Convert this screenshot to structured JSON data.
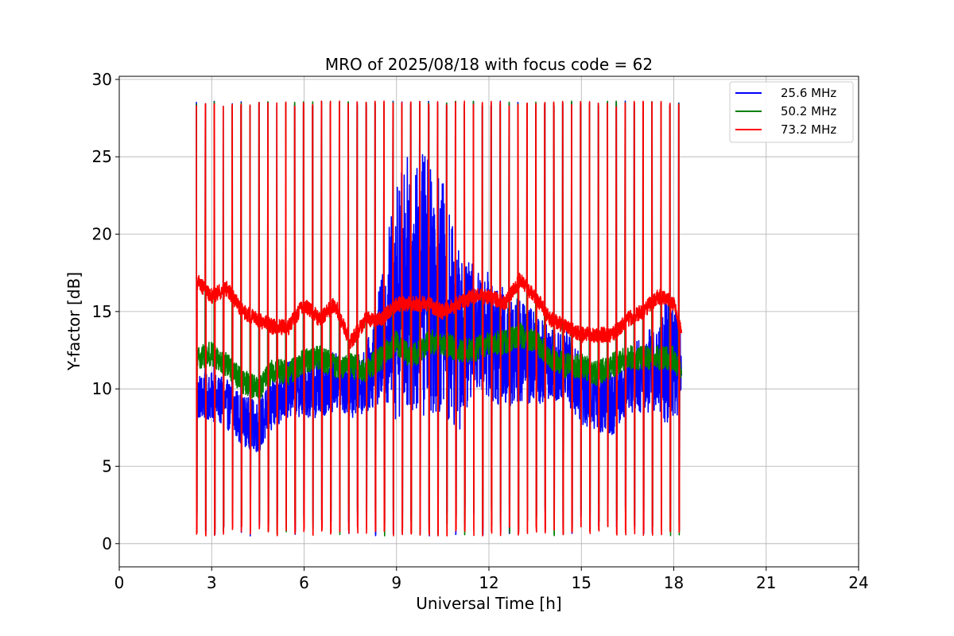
{
  "chart_data": {
    "type": "line",
    "title": "MRO of 2025/08/18 with focus code = 62",
    "xlabel": "Universal Time [h]",
    "ylabel": "Y-factor [dB]",
    "xlim": [
      0,
      24
    ],
    "ylim": [
      -1.5,
      30.2
    ],
    "xticks": [
      0,
      3,
      6,
      9,
      12,
      15,
      18,
      21,
      24
    ],
    "yticks": [
      0,
      5,
      10,
      15,
      20,
      25,
      30
    ],
    "grid": true,
    "legend_position": "top-right",
    "data_range_x": [
      2.5,
      18.25
    ],
    "spike_period_h": 0.29,
    "spike_peak": 28.6,
    "spike_trough": 0.2,
    "series": [
      {
        "name": "25.6 MHz",
        "color": "#0000ff",
        "baseline": {
          "x": [
            2.5,
            3.0,
            3.5,
            4.0,
            4.5,
            5.0,
            5.5,
            6.0,
            6.5,
            7.0,
            7.5,
            8.0,
            8.5,
            9.0,
            9.5,
            10.0,
            10.5,
            11.0,
            11.5,
            12.0,
            12.5,
            13.0,
            13.5,
            14.0,
            14.5,
            15.0,
            15.5,
            16.0,
            16.5,
            17.0,
            17.5,
            18.0,
            18.25
          ],
          "y": [
            9.5,
            9.5,
            9.0,
            8.0,
            7.5,
            9.0,
            10.0,
            10.0,
            10.0,
            10.5,
            10.0,
            10.5,
            13.0,
            16.0,
            17.0,
            17.0,
            16.0,
            13.0,
            14.0,
            13.5,
            12.5,
            12.5,
            12.0,
            11.5,
            11.5,
            10.0,
            9.5,
            9.0,
            10.5,
            11.0,
            11.5,
            12.0,
            11.5
          ]
        },
        "fluctuation": {
          "x": [
            2.5,
            8.0,
            8.5,
            9.0,
            10.0,
            11.0,
            11.5,
            12.5,
            13.5,
            14.0,
            16.5,
            17.5,
            18.0,
            18.25
          ],
          "y": [
            1.5,
            2.0,
            4.0,
            8.0,
            9.0,
            6.0,
            4.0,
            4.0,
            3.0,
            2.5,
            2.0,
            3.0,
            5.0,
            2.0
          ]
        }
      },
      {
        "name": "50.2 MHz",
        "color": "#008000",
        "baseline": {
          "x": [
            2.5,
            3.0,
            3.5,
            4.0,
            4.5,
            5.0,
            5.5,
            6.0,
            6.5,
            7.0,
            7.5,
            8.0,
            8.5,
            9.0,
            9.5,
            10.0,
            10.5,
            11.0,
            11.5,
            12.0,
            12.5,
            13.0,
            13.5,
            14.0,
            14.5,
            15.0,
            15.5,
            16.0,
            16.5,
            17.0,
            17.5,
            18.0,
            18.25
          ],
          "y": [
            12.0,
            12.3,
            11.5,
            10.5,
            10.0,
            11.2,
            11.0,
            11.8,
            12.0,
            11.5,
            11.5,
            11.2,
            12.0,
            13.0,
            12.0,
            13.0,
            13.0,
            12.5,
            12.5,
            13.0,
            13.0,
            13.5,
            13.0,
            12.0,
            11.5,
            11.5,
            11.0,
            11.5,
            12.0,
            12.0,
            12.0,
            12.0,
            11.0
          ]
        },
        "fluctuation": {
          "x": [
            2.5,
            18.25
          ],
          "y": [
            0.8,
            0.8
          ]
        }
      },
      {
        "name": "73.2 MHz",
        "color": "#ff0000",
        "baseline": {
          "x": [
            2.5,
            3.0,
            3.5,
            4.0,
            4.5,
            5.0,
            5.5,
            6.0,
            6.5,
            7.0,
            7.5,
            8.0,
            8.5,
            9.0,
            9.5,
            10.0,
            10.5,
            11.0,
            11.5,
            12.0,
            12.5,
            13.0,
            13.5,
            14.0,
            14.5,
            15.0,
            15.5,
            16.0,
            16.5,
            17.0,
            17.5,
            18.0,
            18.25
          ],
          "y": [
            17.0,
            16.0,
            16.5,
            15.0,
            14.5,
            14.0,
            14.0,
            15.5,
            14.5,
            15.5,
            13.0,
            14.5,
            14.5,
            15.5,
            15.5,
            15.5,
            15.0,
            15.5,
            16.0,
            16.0,
            15.5,
            17.0,
            16.0,
            14.5,
            14.0,
            13.5,
            13.5,
            13.5,
            14.5,
            15.0,
            16.0,
            15.5,
            13.5
          ]
        },
        "fluctuation": {
          "x": [
            2.5,
            18.25
          ],
          "y": [
            0.5,
            0.5
          ]
        }
      }
    ]
  }
}
